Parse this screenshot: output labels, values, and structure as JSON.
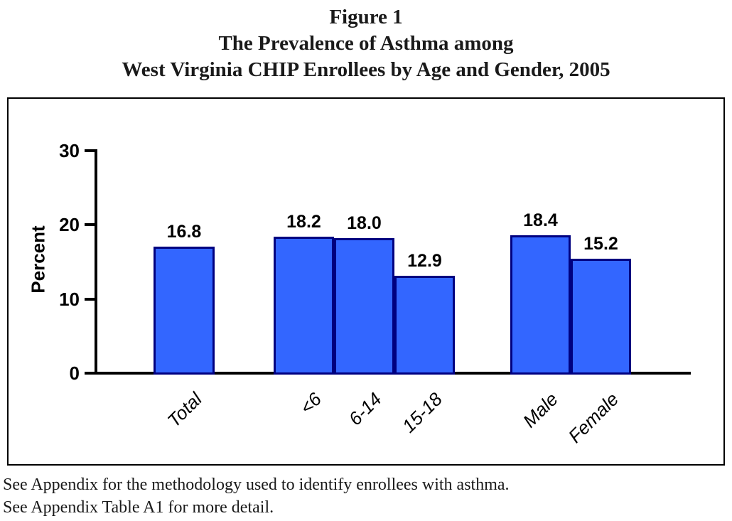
{
  "title": {
    "line1": "Figure 1",
    "line2": "The Prevalence of Asthma among",
    "line3": "West Virginia CHIP Enrollees by Age and Gender, 2005"
  },
  "chart_data": {
    "type": "bar",
    "categories": [
      "Total",
      "<6",
      "6-14",
      "15-18",
      "Male",
      "Female"
    ],
    "values": [
      16.8,
      18.2,
      18.0,
      12.9,
      18.4,
      15.2
    ],
    "value_labels": [
      "16.8",
      "18.2",
      "18.0",
      "12.9",
      "18.4",
      "15.2"
    ],
    "groups": [
      [
        "Total"
      ],
      [
        "<6",
        "6-14",
        "15-18"
      ],
      [
        "Male",
        "Female"
      ]
    ],
    "title": "The Prevalence of Asthma among West Virginia CHIP Enrollees by Age and Gender, 2005",
    "xlabel": "",
    "ylabel": "Percent",
    "yticks": [
      0,
      10,
      20,
      30
    ],
    "ylim": [
      0,
      30
    ],
    "grid": false,
    "legend": "none",
    "bar_fill": "#3366FF",
    "bar_border": "#000080",
    "axis_color": "#000000"
  },
  "footnotes": {
    "line1": "See Appendix for the methodology used to identify enrollees with asthma.",
    "line2": "See Appendix Table A1 for more detail."
  }
}
